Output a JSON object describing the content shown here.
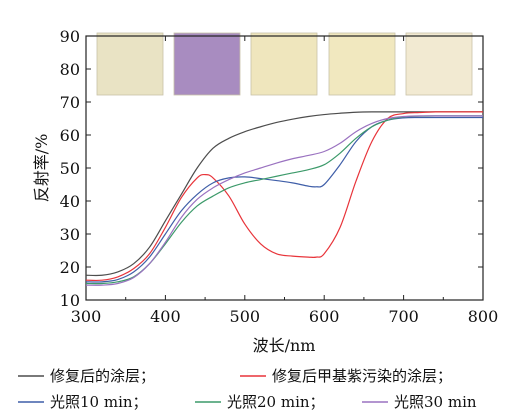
{
  "chart_data": {
    "type": "line",
    "title": "",
    "xlabel": "波长/nm",
    "ylabel": "反射率/%",
    "xlim": [
      300,
      800
    ],
    "ylim": [
      10,
      90
    ],
    "xticks": [
      300,
      400,
      500,
      600,
      700,
      800
    ],
    "yticks": [
      10,
      20,
      30,
      40,
      50,
      60,
      70,
      80,
      90
    ],
    "grid": false,
    "legend_position": "bottom",
    "swatches": [
      {
        "name": "repaired",
        "color": "#e9e3c4"
      },
      {
        "name": "stained",
        "color": "#a88cc0"
      },
      {
        "name": "light-10",
        "color": "#efe6bd"
      },
      {
        "name": "light-20",
        "color": "#f1e8bf"
      },
      {
        "name": "light-30",
        "color": "#f2ead2"
      }
    ],
    "series": [
      {
        "name": "修复后的涂层；",
        "color": "#4d4d4d",
        "x": [
          300,
          320,
          340,
          360,
          380,
          400,
          420,
          440,
          460,
          480,
          500,
          520,
          540,
          560,
          580,
          600,
          620,
          640,
          660,
          680,
          700,
          720,
          740,
          760,
          780,
          800
        ],
        "y": [
          17.5,
          17.5,
          18.5,
          21,
          26,
          34,
          42,
          50,
          56,
          59,
          61,
          62.5,
          63.8,
          64.8,
          65.6,
          66.2,
          66.6,
          66.9,
          67,
          67,
          67,
          67,
          67,
          67,
          67,
          67
        ]
      },
      {
        "name": "修复后甲基紫污染的涂层；",
        "color": "#e8343a",
        "x": [
          300,
          320,
          340,
          360,
          380,
          400,
          420,
          440,
          450,
          460,
          480,
          500,
          520,
          540,
          560,
          580,
          590,
          600,
          620,
          640,
          660,
          680,
          700,
          720,
          740,
          760,
          780,
          800
        ],
        "y": [
          16,
          16,
          17,
          19.5,
          24,
          32,
          41,
          47,
          48,
          47,
          41.5,
          33,
          27,
          24,
          23.3,
          23,
          23,
          24,
          32,
          46,
          58,
          65,
          66.5,
          66.8,
          67,
          67,
          67,
          67
        ]
      },
      {
        "name": "光照10 min；",
        "color": "#3f5ea8",
        "x": [
          300,
          320,
          340,
          360,
          380,
          400,
          420,
          440,
          460,
          480,
          500,
          520,
          540,
          560,
          580,
          590,
          600,
          620,
          640,
          660,
          680,
          700,
          720,
          740,
          760,
          780,
          800
        ],
        "y": [
          15.5,
          15.5,
          16.2,
          18.5,
          23,
          30,
          37,
          42,
          45.5,
          47,
          47.3,
          46.8,
          46.2,
          45.5,
          44.5,
          44.3,
          45,
          51,
          58,
          62.5,
          64.5,
          65.2,
          65.3,
          65.3,
          65.3,
          65.3,
          65.3
        ]
      },
      {
        "name": "光照20 min；",
        "color": "#3c9a6a",
        "x": [
          300,
          320,
          340,
          360,
          380,
          400,
          420,
          440,
          460,
          480,
          500,
          520,
          540,
          560,
          580,
          600,
          620,
          640,
          660,
          680,
          700,
          720,
          740,
          760,
          780,
          800
        ],
        "y": [
          15,
          15,
          15.5,
          17,
          21,
          27,
          33.5,
          38.5,
          41.5,
          44,
          45.5,
          46.5,
          47.5,
          48.5,
          49.5,
          51,
          54.5,
          59,
          62.5,
          64.5,
          65.5,
          65.7,
          65.8,
          65.8,
          65.8,
          65.8
        ]
      },
      {
        "name": "光照30 min",
        "color": "#9a72c0",
        "x": [
          300,
          320,
          340,
          360,
          380,
          400,
          420,
          440,
          460,
          480,
          500,
          520,
          540,
          560,
          580,
          600,
          620,
          640,
          660,
          680,
          700,
          720,
          740,
          760,
          780,
          800
        ],
        "y": [
          14.5,
          14.5,
          15,
          16.8,
          21,
          27.5,
          35,
          40.5,
          44,
          46.5,
          48.5,
          50,
          51.5,
          52.8,
          53.8,
          55,
          57.5,
          61,
          63.5,
          65,
          65.6,
          65.8,
          65.8,
          65.8,
          65.8,
          65.8
        ]
      }
    ]
  }
}
